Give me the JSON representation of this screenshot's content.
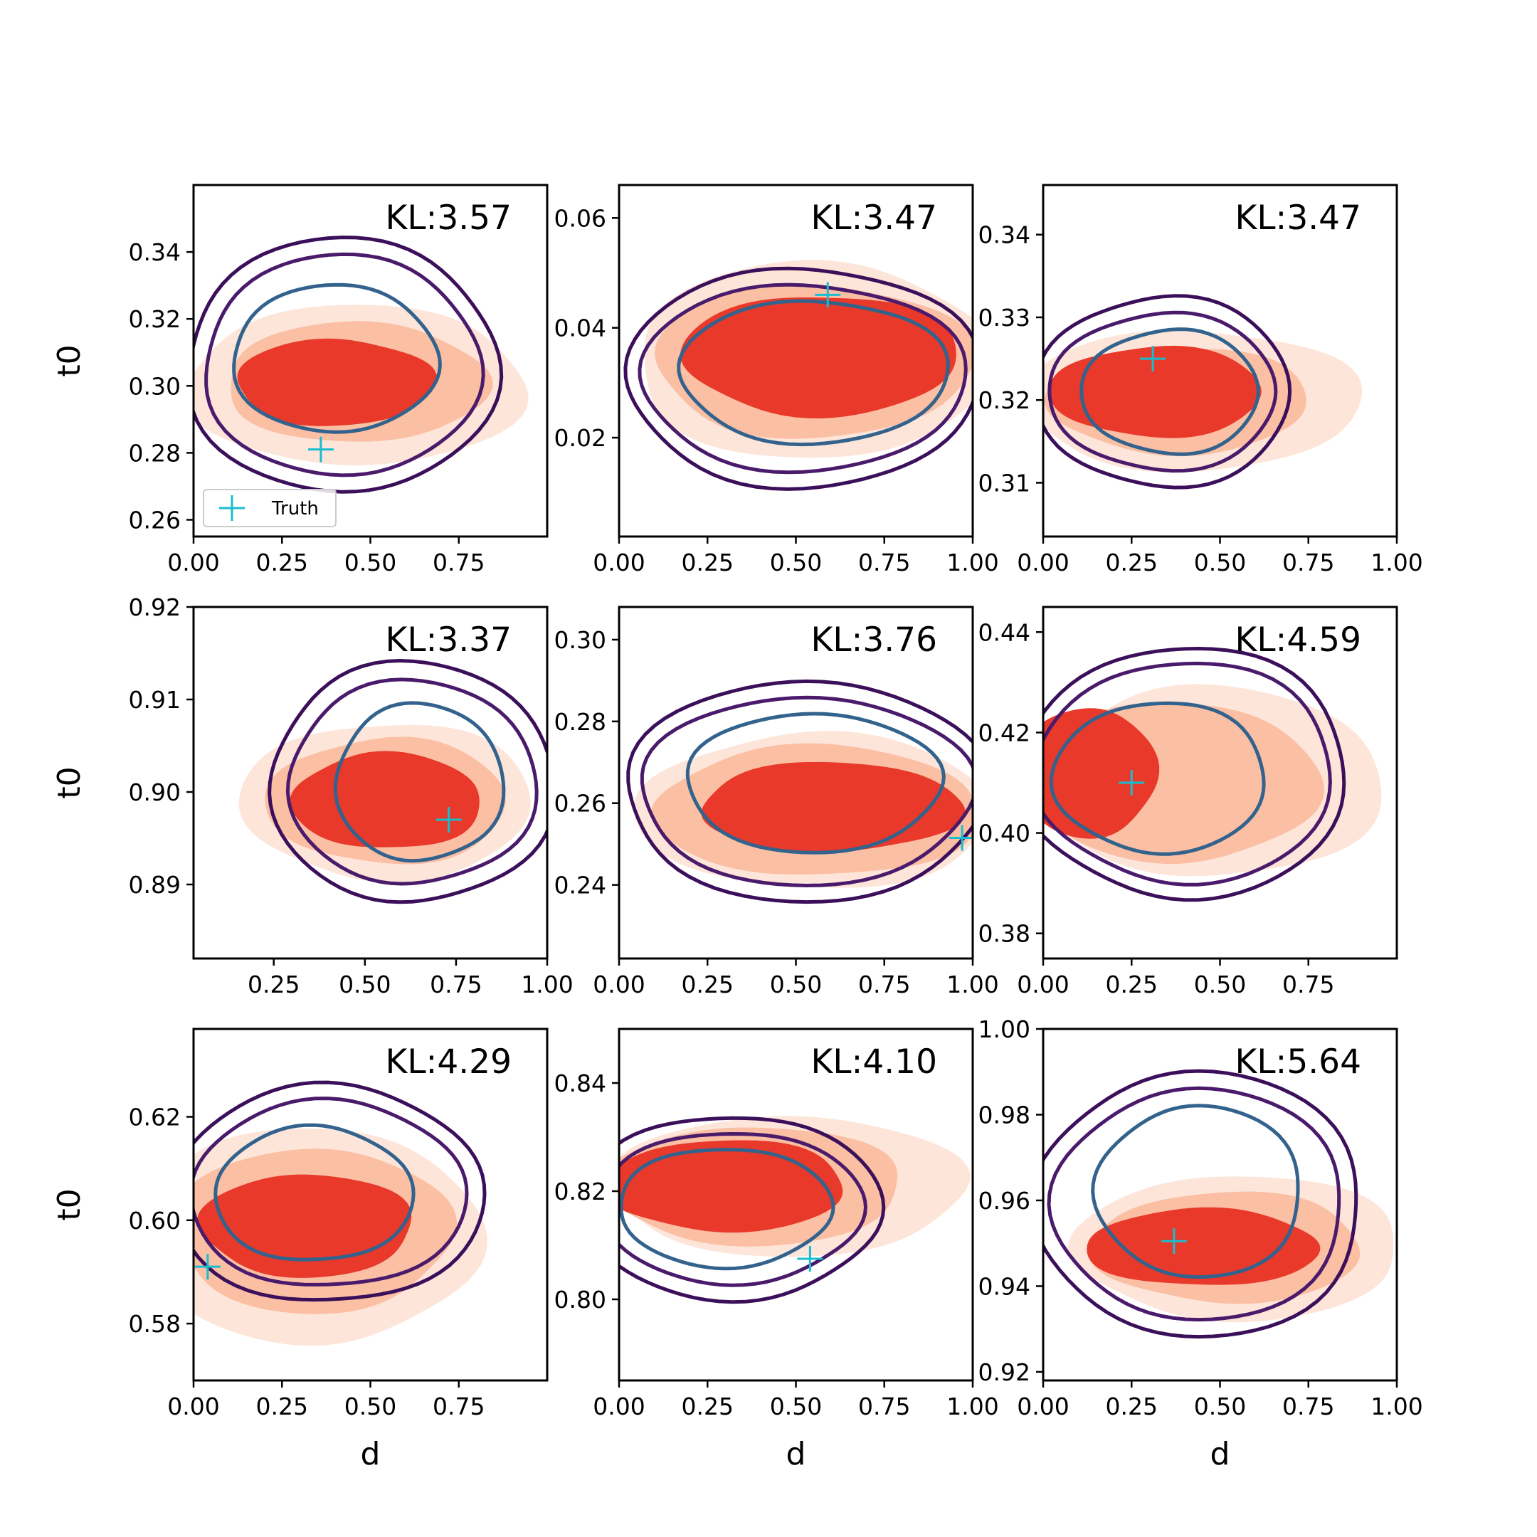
{
  "chart_data": [
    {
      "type": "contour",
      "xlabel": "",
      "ylabel": "t0",
      "xlim": [
        0,
        1
      ],
      "ylim": [
        0.255,
        0.36
      ],
      "xticks": [
        "0.00",
        "0.25",
        "0.50",
        "0.75"
      ],
      "yticks": [
        {
          "v": 0.26,
          "t": "0.26"
        },
        {
          "v": 0.28,
          "t": "0.28"
        },
        {
          "v": 0.3,
          "t": "0.30"
        },
        {
          "v": 0.32,
          "t": "0.32"
        },
        {
          "v": 0.34,
          "t": "0.34"
        }
      ],
      "kl": "KL:3.57",
      "truth": [
        0.36,
        0.281
      ],
      "legend": {
        "label": "Truth",
        "position": "lower-left"
      },
      "fill_blobs": [
        {
          "cx": 0.46,
          "cy": 0.3,
          "rx": 0.48,
          "ry": 0.024
        },
        {
          "cx": 0.46,
          "cy": 0.301,
          "rx": 0.37,
          "ry": 0.018
        },
        {
          "cx": 0.4,
          "cy": 0.301,
          "rx": 0.28,
          "ry": 0.013
        }
      ],
      "contours": [
        {
          "cx": 0.42,
          "cy": 0.306,
          "rx": 0.44,
          "ry": 0.038,
          "color": "#3b0f5a"
        },
        {
          "cx": 0.42,
          "cy": 0.306,
          "rx": 0.39,
          "ry": 0.033,
          "color": "#4a1a6b"
        },
        {
          "cx": 0.4,
          "cy": 0.308,
          "rx": 0.29,
          "ry": 0.022,
          "color": "#33638d"
        }
      ]
    },
    {
      "type": "contour",
      "xlabel": "",
      "ylabel": "",
      "xlim": [
        0,
        1
      ],
      "ylim": [
        0.002,
        0.066
      ],
      "xticks": [
        "0.00",
        "0.25",
        "0.50",
        "0.75",
        "1.00"
      ],
      "yticks": [
        {
          "v": 0.02,
          "t": "0.02"
        },
        {
          "v": 0.04,
          "t": "0.04"
        },
        {
          "v": 0.06,
          "t": "0.06"
        }
      ],
      "kl": "KL:3.47",
      "truth": [
        0.59,
        0.046
      ],
      "fill_blobs": [
        {
          "cx": 0.55,
          "cy": 0.034,
          "rx": 0.5,
          "ry": 0.018
        },
        {
          "cx": 0.55,
          "cy": 0.034,
          "rx": 0.45,
          "ry": 0.014
        },
        {
          "cx": 0.57,
          "cy": 0.035,
          "rx": 0.39,
          "ry": 0.011
        }
      ],
      "contours": [
        {
          "cx": 0.52,
          "cy": 0.031,
          "rx": 0.5,
          "ry": 0.02,
          "color": "#3b0f5a"
        },
        {
          "cx": 0.52,
          "cy": 0.031,
          "rx": 0.46,
          "ry": 0.017,
          "color": "#4a1a6b"
        },
        {
          "cx": 0.55,
          "cy": 0.032,
          "rx": 0.38,
          "ry": 0.013,
          "color": "#33638d"
        }
      ]
    },
    {
      "type": "contour",
      "xlabel": "",
      "ylabel": "",
      "xlim": [
        0,
        1
      ],
      "ylim": [
        0.3035,
        0.346
      ],
      "xticks": [
        "0.00",
        "0.25",
        "0.50",
        "0.75",
        "1.00"
      ],
      "yticks": [
        {
          "v": 0.31,
          "t": "0.31"
        },
        {
          "v": 0.32,
          "t": "0.32"
        },
        {
          "v": 0.33,
          "t": "0.33"
        },
        {
          "v": 0.34,
          "t": "0.34"
        }
      ],
      "kl": "KL:3.47",
      "truth": [
        0.31,
        0.325
      ],
      "fill_blobs": [
        {
          "cx": 0.42,
          "cy": 0.32,
          "rx": 0.48,
          "ry": 0.0085
        },
        {
          "cx": 0.38,
          "cy": 0.32,
          "rx": 0.37,
          "ry": 0.0065
        },
        {
          "cx": 0.32,
          "cy": 0.321,
          "rx": 0.3,
          "ry": 0.0055
        }
      ],
      "contours": [
        {
          "cx": 0.34,
          "cy": 0.321,
          "rx": 0.36,
          "ry": 0.0115,
          "color": "#3b0f5a"
        },
        {
          "cx": 0.34,
          "cy": 0.321,
          "rx": 0.32,
          "ry": 0.0095,
          "color": "#4a1a6b"
        },
        {
          "cx": 0.36,
          "cy": 0.321,
          "rx": 0.25,
          "ry": 0.0075,
          "color": "#33638d"
        }
      ]
    },
    {
      "type": "contour",
      "xlabel": "",
      "ylabel": "t0",
      "xlim": [
        0.03,
        1
      ],
      "ylim": [
        0.882,
        0.92
      ],
      "xticks": [
        "0.25",
        "0.50",
        "0.75",
        "1.00"
      ],
      "yticks": [
        {
          "v": 0.89,
          "t": "0.89"
        },
        {
          "v": 0.9,
          "t": "0.90"
        },
        {
          "v": 0.91,
          "t": "0.91"
        },
        {
          "v": 0.92,
          "t": "0.92"
        }
      ],
      "kl": "KL:3.37",
      "truth": [
        0.73,
        0.897
      ],
      "fill_blobs": [
        {
          "cx": 0.56,
          "cy": 0.899,
          "rx": 0.4,
          "ry": 0.0085
        },
        {
          "cx": 0.56,
          "cy": 0.899,
          "rx": 0.33,
          "ry": 0.0068
        },
        {
          "cx": 0.56,
          "cy": 0.899,
          "rx": 0.26,
          "ry": 0.0052
        }
      ],
      "contours": [
        {
          "cx": 0.63,
          "cy": 0.901,
          "rx": 0.39,
          "ry": 0.013,
          "color": "#3b0f5a"
        },
        {
          "cx": 0.63,
          "cy": 0.901,
          "rx": 0.34,
          "ry": 0.011,
          "color": "#4a1a6b"
        },
        {
          "cx": 0.65,
          "cy": 0.901,
          "rx": 0.23,
          "ry": 0.0085,
          "color": "#33638d"
        }
      ]
    },
    {
      "type": "contour",
      "xlabel": "",
      "ylabel": "",
      "xlim": [
        0,
        1
      ],
      "ylim": [
        0.222,
        0.308
      ],
      "xticks": [
        "0.00",
        "0.25",
        "0.50",
        "0.75",
        "1.00"
      ],
      "yticks": [
        {
          "v": 0.24,
          "t": "0.24"
        },
        {
          "v": 0.26,
          "t": "0.26"
        },
        {
          "v": 0.28,
          "t": "0.28"
        },
        {
          "v": 0.3,
          "t": "0.30"
        }
      ],
      "kl": "KL:3.76",
      "truth": [
        0.97,
        0.2515
      ],
      "fill_blobs": [
        {
          "cx": 0.55,
          "cy": 0.258,
          "rx": 0.5,
          "ry": 0.019
        },
        {
          "cx": 0.56,
          "cy": 0.258,
          "rx": 0.46,
          "ry": 0.016
        },
        {
          "cx": 0.6,
          "cy": 0.259,
          "rx": 0.37,
          "ry": 0.011
        }
      ],
      "contours": [
        {
          "cx": 0.53,
          "cy": 0.263,
          "rx": 0.51,
          "ry": 0.027,
          "color": "#3b0f5a"
        },
        {
          "cx": 0.53,
          "cy": 0.263,
          "rx": 0.47,
          "ry": 0.023,
          "color": "#4a1a6b"
        },
        {
          "cx": 0.55,
          "cy": 0.265,
          "rx": 0.36,
          "ry": 0.017,
          "color": "#33638d"
        }
      ]
    },
    {
      "type": "contour",
      "xlabel": "",
      "ylabel": "",
      "xlim": [
        0,
        1
      ],
      "ylim": [
        0.375,
        0.445
      ],
      "xticks": [
        "0.00",
        "0.25",
        "0.50",
        "0.75"
      ],
      "yticks": [
        {
          "v": 0.38,
          "t": "0.38"
        },
        {
          "v": 0.4,
          "t": "0.40"
        },
        {
          "v": 0.42,
          "t": "0.42"
        },
        {
          "v": 0.44,
          "t": "0.44"
        }
      ],
      "kl": "KL:4.59",
      "truth": [
        0.25,
        0.41
      ],
      "fill_blobs": [
        {
          "cx": 0.48,
          "cy": 0.41,
          "rx": 0.48,
          "ry": 0.019
        },
        {
          "cx": 0.38,
          "cy": 0.41,
          "rx": 0.4,
          "ry": 0.016
        },
        {
          "cx": 0.13,
          "cy": 0.412,
          "rx": 0.19,
          "ry": 0.013
        }
      ],
      "contours": [
        {
          "cx": 0.4,
          "cy": 0.412,
          "rx": 0.46,
          "ry": 0.025,
          "color": "#3b0f5a"
        },
        {
          "cx": 0.4,
          "cy": 0.412,
          "rx": 0.42,
          "ry": 0.022,
          "color": "#4a1a6b"
        },
        {
          "cx": 0.33,
          "cy": 0.411,
          "rx": 0.3,
          "ry": 0.015,
          "color": "#33638d"
        }
      ]
    },
    {
      "type": "contour",
      "xlabel": "d",
      "ylabel": "t0",
      "xlim": [
        0,
        1
      ],
      "ylim": [
        0.569,
        0.637
      ],
      "xticks": [
        "0.00",
        "0.25",
        "0.50",
        "0.75"
      ],
      "yticks": [
        {
          "v": 0.58,
          "t": "0.58"
        },
        {
          "v": 0.6,
          "t": "0.60"
        },
        {
          "v": 0.62,
          "t": "0.62"
        }
      ],
      "kl": "KL:4.29",
      "truth": [
        0.04,
        0.591
      ],
      "fill_blobs": [
        {
          "cx": 0.34,
          "cy": 0.597,
          "rx": 0.47,
          "ry": 0.021
        },
        {
          "cx": 0.34,
          "cy": 0.598,
          "rx": 0.39,
          "ry": 0.016
        },
        {
          "cx": 0.32,
          "cy": 0.599,
          "rx": 0.3,
          "ry": 0.01
        }
      ],
      "contours": [
        {
          "cx": 0.38,
          "cy": 0.605,
          "rx": 0.44,
          "ry": 0.021,
          "color": "#3b0f5a"
        },
        {
          "cx": 0.38,
          "cy": 0.605,
          "rx": 0.39,
          "ry": 0.018,
          "color": "#4a1a6b"
        },
        {
          "cx": 0.34,
          "cy": 0.605,
          "rx": 0.28,
          "ry": 0.013,
          "color": "#33638d"
        }
      ]
    },
    {
      "type": "contour",
      "xlabel": "d",
      "ylabel": "",
      "xlim": [
        0,
        1
      ],
      "ylim": [
        0.785,
        0.85
      ],
      "xticks": [
        "0.00",
        "0.25",
        "0.50",
        "0.75",
        "1.00"
      ],
      "yticks": [
        {
          "v": 0.8,
          "t": "0.80"
        },
        {
          "v": 0.82,
          "t": "0.82"
        },
        {
          "v": 0.84,
          "t": "0.84"
        }
      ],
      "kl": "KL:4.10",
      "truth": [
        0.54,
        0.8075
      ],
      "fill_blobs": [
        {
          "cx": 0.48,
          "cy": 0.821,
          "rx": 0.5,
          "ry": 0.013
        },
        {
          "cx": 0.38,
          "cy": 0.821,
          "rx": 0.42,
          "ry": 0.011
        },
        {
          "cx": 0.3,
          "cy": 0.821,
          "rx": 0.34,
          "ry": 0.0085
        }
      ],
      "contours": [
        {
          "cx": 0.32,
          "cy": 0.817,
          "rx": 0.42,
          "ry": 0.017,
          "color": "#3b0f5a"
        },
        {
          "cx": 0.32,
          "cy": 0.817,
          "rx": 0.37,
          "ry": 0.014,
          "color": "#4a1a6b"
        },
        {
          "cx": 0.3,
          "cy": 0.817,
          "rx": 0.3,
          "ry": 0.011,
          "color": "#33638d"
        }
      ]
    },
    {
      "type": "contour",
      "xlabel": "d",
      "ylabel": "",
      "xlim": [
        0,
        1
      ],
      "ylim": [
        0.918,
        1.0
      ],
      "xticks": [
        "0.00",
        "0.25",
        "0.50",
        "0.75",
        "1.00"
      ],
      "yticks": [
        {
          "v": 0.92,
          "t": "0.92"
        },
        {
          "v": 0.94,
          "t": "0.94"
        },
        {
          "v": 0.96,
          "t": "0.96"
        },
        {
          "v": 0.98,
          "t": "0.98"
        },
        {
          "v": 1.0,
          "t": "1.00"
        }
      ],
      "kl": "KL:5.64",
      "truth": [
        0.37,
        0.9505
      ],
      "fill_blobs": [
        {
          "cx": 0.55,
          "cy": 0.949,
          "rx": 0.46,
          "ry": 0.017
        },
        {
          "cx": 0.52,
          "cy": 0.949,
          "rx": 0.38,
          "ry": 0.013
        },
        {
          "cx": 0.45,
          "cy": 0.949,
          "rx": 0.33,
          "ry": 0.009
        }
      ],
      "contours": [
        {
          "cx": 0.44,
          "cy": 0.959,
          "rx": 0.46,
          "ry": 0.031,
          "color": "#3b0f5a"
        },
        {
          "cx": 0.44,
          "cy": 0.959,
          "rx": 0.41,
          "ry": 0.027,
          "color": "#4a1a6b"
        },
        {
          "cx": 0.44,
          "cy": 0.962,
          "rx": 0.29,
          "ry": 0.02,
          "color": "#33638d"
        }
      ]
    }
  ]
}
